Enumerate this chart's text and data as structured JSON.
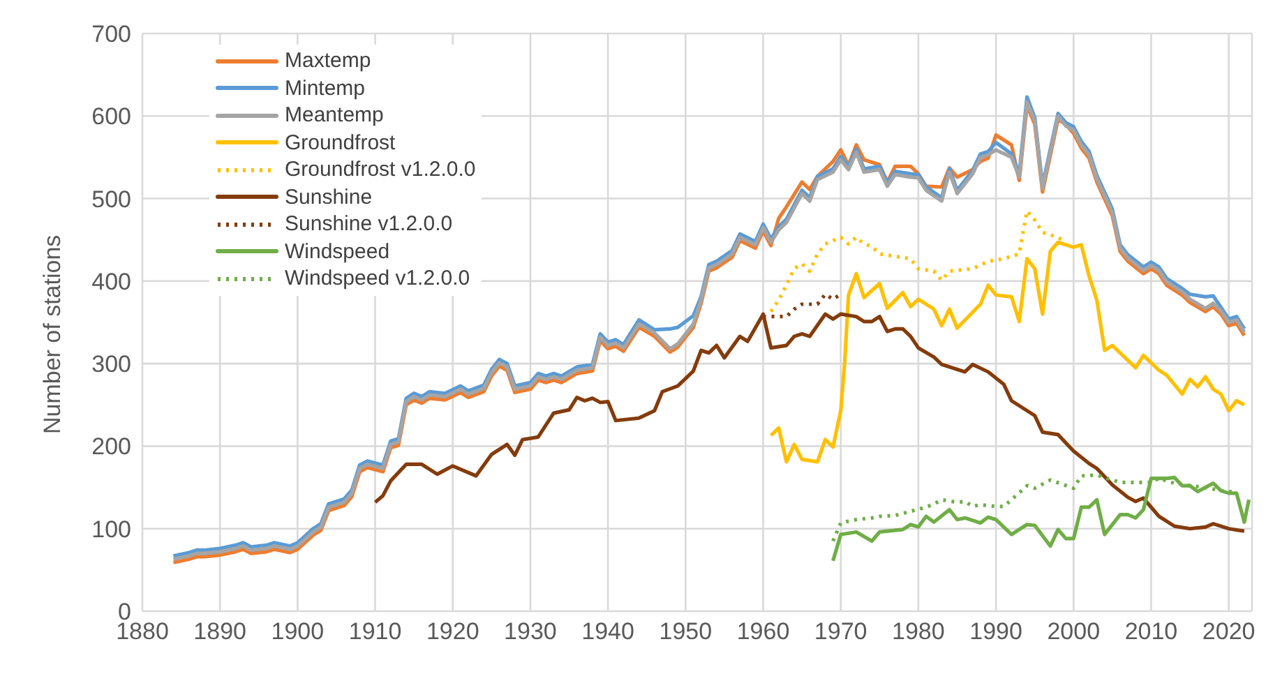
{
  "chart_data": {
    "type": "line",
    "ylabel": "Number of stations",
    "xlim": [
      1880,
      2023
    ],
    "xticks": [
      1880,
      1890,
      1900,
      1910,
      1920,
      1930,
      1940,
      1950,
      1960,
      1970,
      1980,
      1990,
      2000,
      2010,
      2020
    ],
    "ylim": [
      0,
      700
    ],
    "yticks": [
      0,
      100,
      200,
      300,
      400,
      500,
      600,
      700
    ],
    "grid": true,
    "legend": "top left",
    "marker": "none",
    "series": [
      {
        "name": "Maxtemp",
        "color": "#ed7d31",
        "line_style": "solid",
        "x": [
          1884,
          1886,
          1887,
          1888,
          1890,
          1892,
          1893,
          1894,
          1896,
          1897,
          1899,
          1900,
          1902,
          1903,
          1904,
          1906,
          1907,
          1908,
          1909,
          1911,
          1912,
          1913,
          1914,
          1915,
          1916,
          1917,
          1919,
          1921,
          1922,
          1924,
          1925,
          1926,
          1927,
          1928,
          1930,
          1931,
          1932,
          1933,
          1934,
          1936,
          1938,
          1939,
          1940,
          1941,
          1942,
          1944,
          1946,
          1948,
          1949,
          1951,
          1952,
          1953,
          1954,
          1956,
          1957,
          1959,
          1960,
          1961,
          1962,
          1963,
          1965,
          1966,
          1967,
          1969,
          1970,
          1971,
          1972,
          1973,
          1975,
          1976,
          1977,
          1979,
          1980,
          1981,
          1983,
          1984,
          1985,
          1987,
          1988,
          1989,
          1990,
          1992,
          1993,
          1994,
          1995,
          1996,
          1998,
          1999,
          2000,
          2001,
          2002,
          2003,
          2005,
          2006,
          2007,
          2009,
          2010,
          2011,
          2012,
          2014,
          2015,
          2017,
          2018,
          2019,
          2020,
          2021,
          2022
        ],
        "values": [
          59,
          63,
          66,
          66,
          68,
          72,
          75,
          70,
          72,
          75,
          71,
          75,
          92,
          98,
          122,
          128,
          139,
          169,
          174,
          169,
          198,
          201,
          250,
          256,
          252,
          258,
          256,
          265,
          259,
          266,
          285,
          297,
          292,
          265,
          269,
          280,
          277,
          280,
          277,
          288,
          291,
          328,
          318,
          321,
          315,
          344,
          333,
          314,
          320,
          344,
          373,
          412,
          416,
          429,
          449,
          440,
          461,
          443,
          476,
          490,
          520,
          511,
          527,
          545,
          559,
          540,
          565,
          547,
          541,
          520,
          539,
          539,
          530,
          515,
          514,
          537,
          526,
          535,
          545,
          549,
          577,
          565,
          522,
          613,
          590,
          508,
          596,
          590,
          579,
          561,
          549,
          520,
          479,
          436,
          424,
          409,
          415,
          409,
          395,
          383,
          374,
          363,
          369,
          360,
          346,
          349,
          334
        ]
      },
      {
        "name": "Mintemp",
        "color": "#5b9bd5",
        "line_style": "solid",
        "x": [
          1884,
          1886,
          1887,
          1888,
          1890,
          1892,
          1893,
          1894,
          1896,
          1897,
          1899,
          1900,
          1902,
          1903,
          1904,
          1906,
          1907,
          1908,
          1909,
          1911,
          1912,
          1913,
          1914,
          1915,
          1916,
          1917,
          1919,
          1921,
          1922,
          1924,
          1925,
          1926,
          1927,
          1928,
          1930,
          1931,
          1932,
          1933,
          1934,
          1936,
          1938,
          1939,
          1940,
          1941,
          1942,
          1944,
          1946,
          1948,
          1949,
          1951,
          1952,
          1953,
          1954,
          1956,
          1957,
          1959,
          1960,
          1961,
          1962,
          1963,
          1965,
          1966,
          1967,
          1969,
          1970,
          1971,
          1972,
          1973,
          1975,
          1976,
          1977,
          1979,
          1980,
          1981,
          1983,
          1984,
          1985,
          1987,
          1988,
          1989,
          1990,
          1992,
          1993,
          1994,
          1995,
          1996,
          1998,
          1999,
          2000,
          2001,
          2002,
          2003,
          2005,
          2006,
          2007,
          2009,
          2010,
          2011,
          2012,
          2014,
          2015,
          2017,
          2018,
          2019,
          2020,
          2021,
          2022
        ],
        "values": [
          67,
          71,
          74,
          74,
          76,
          80,
          83,
          78,
          80,
          83,
          79,
          83,
          100,
          106,
          130,
          136,
          147,
          177,
          182,
          177,
          206,
          209,
          258,
          264,
          260,
          266,
          264,
          273,
          267,
          274,
          293,
          305,
          300,
          273,
          277,
          288,
          285,
          288,
          285,
          296,
          299,
          336,
          326,
          329,
          323,
          353,
          341,
          342,
          344,
          358,
          381,
          420,
          424,
          437,
          457,
          448,
          469,
          451,
          466,
          475,
          510,
          501,
          527,
          536,
          551,
          539,
          560,
          536,
          539,
          519,
          533,
          530,
          529,
          514,
          501,
          536,
          510,
          534,
          554,
          557,
          568,
          554,
          530,
          623,
          598,
          516,
          603,
          592,
          587,
          569,
          557,
          528,
          487,
          444,
          432,
          417,
          423,
          417,
          403,
          391,
          384,
          381,
          382,
          368,
          354,
          357,
          342
        ]
      },
      {
        "name": "Meantemp",
        "color": "#a5a5a5",
        "line_style": "solid",
        "x": [
          1884,
          1886,
          1887,
          1888,
          1890,
          1892,
          1893,
          1894,
          1896,
          1897,
          1899,
          1900,
          1902,
          1903,
          1904,
          1906,
          1907,
          1908,
          1909,
          1911,
          1912,
          1913,
          1914,
          1915,
          1916,
          1917,
          1919,
          1921,
          1922,
          1924,
          1925,
          1926,
          1927,
          1928,
          1930,
          1931,
          1932,
          1933,
          1934,
          1936,
          1938,
          1939,
          1940,
          1941,
          1942,
          1944,
          1946,
          1948,
          1949,
          1951,
          1952,
          1953,
          1954,
          1956,
          1957,
          1959,
          1960,
          1961,
          1962,
          1963,
          1965,
          1966,
          1967,
          1969,
          1970,
          1971,
          1972,
          1973,
          1975,
          1976,
          1977,
          1979,
          1980,
          1981,
          1983,
          1984,
          1985,
          1987,
          1988,
          1989,
          1990,
          1992,
          1993,
          1994,
          1995,
          1996,
          1998,
          1999,
          2000,
          2001,
          2002,
          2003,
          2005,
          2006,
          2007,
          2009,
          2010,
          2011,
          2012,
          2014,
          2015,
          2017,
          2018,
          2019,
          2020,
          2021,
          2022
        ],
        "values": [
          63,
          67,
          70,
          70,
          72,
          76,
          79,
          74,
          76,
          79,
          75,
          79,
          96,
          102,
          126,
          132,
          143,
          173,
          178,
          173,
          202,
          205,
          254,
          260,
          256,
          262,
          260,
          269,
          263,
          270,
          289,
          301,
          296,
          269,
          273,
          284,
          281,
          284,
          281,
          292,
          295,
          332,
          322,
          325,
          319,
          348,
          337,
          318,
          324,
          348,
          377,
          416,
          420,
          433,
          453,
          444,
          465,
          447,
          462,
          471,
          506,
          497,
          523,
          532,
          547,
          535,
          556,
          532,
          535,
          515,
          529,
          526,
          525,
          510,
          497,
          532,
          506,
          530,
          550,
          553,
          559,
          550,
          526,
          617,
          594,
          512,
          600,
          588,
          583,
          565,
          553,
          524,
          483,
          440,
          428,
          413,
          419,
          413,
          399,
          387,
          378,
          367,
          373,
          364,
          350,
          353,
          338
        ]
      },
      {
        "name": "Groundfrost",
        "color": "#ffc000",
        "line_style": "solid",
        "x": [
          1961,
          1962,
          1963,
          1964,
          1965,
          1967,
          1968,
          1969,
          1970,
          1970.5,
          1971,
          1972,
          1973,
          1975,
          1976,
          1978,
          1979,
          1980,
          1982,
          1983,
          1984,
          1985,
          1988,
          1989,
          1990,
          1992,
          1993,
          1994,
          1995,
          1996,
          1997,
          1998,
          1999,
          2000,
          2001,
          2002,
          2003,
          2004,
          2005,
          2006,
          2008,
          2009,
          2011,
          2012,
          2014,
          2015,
          2016,
          2017,
          2018,
          2019,
          2020,
          2021,
          2022
        ],
        "values": [
          213,
          222,
          181,
          202,
          184,
          181,
          208,
          199,
          243,
          301,
          383,
          409,
          380,
          397,
          367,
          386,
          369,
          378,
          366,
          346,
          366,
          343,
          372,
          395,
          383,
          381,
          351,
          427,
          415,
          360,
          436,
          447,
          444,
          441,
          444,
          406,
          377,
          316,
          322,
          313,
          295,
          310,
          292,
          286,
          263,
          281,
          272,
          284,
          269,
          263,
          243,
          255,
          250
        ]
      },
      {
        "name": "Groundfrost v1.2.0.0",
        "color": "#ffc000",
        "line_style": "dotted",
        "x": [
          1961,
          1962,
          1963,
          1964,
          1965,
          1966,
          1967,
          1968,
          1970,
          1971,
          1972,
          1973,
          1974,
          1975,
          1977,
          1979,
          1980,
          1982,
          1983,
          1984,
          1987,
          1989,
          1991,
          1993,
          1994,
          1995,
          1996,
          1998,
          1999
        ],
        "values": [
          363,
          377,
          395,
          415,
          421,
          412,
          433,
          445,
          453,
          445,
          453,
          445,
          442,
          433,
          430,
          427,
          415,
          412,
          401,
          412,
          415,
          424,
          427,
          433,
          485,
          474,
          459,
          453,
          447
        ]
      },
      {
        "name": "Sunshine",
        "color": "#843c0c",
        "line_style": "solid",
        "x": [
          1910,
          1911,
          1912,
          1914,
          1916,
          1918,
          1920,
          1921,
          1923,
          1925,
          1927,
          1928,
          1929,
          1931,
          1933,
          1935,
          1936,
          1937,
          1938,
          1939,
          1940,
          1941,
          1944,
          1946,
          1947,
          1949,
          1951,
          1952,
          1953,
          1954,
          1955,
          1957,
          1958,
          1960,
          1961,
          1963,
          1964,
          1965,
          1966,
          1968,
          1969,
          1970,
          1972,
          1973,
          1974,
          1975,
          1976,
          1977,
          1978,
          1979,
          1980,
          1982,
          1983,
          1986,
          1987,
          1989,
          1991,
          1992,
          1995,
          1996,
          1998,
          2000,
          2002,
          2003,
          2005,
          2007,
          2008,
          2009,
          2011,
          2013,
          2015,
          2017,
          2018,
          2020,
          2022
        ],
        "values": [
          132,
          140,
          158,
          178,
          178,
          166,
          176,
          172,
          164,
          190,
          202,
          189,
          208,
          211,
          240,
          244,
          259,
          255,
          258,
          253,
          254,
          231,
          234,
          243,
          266,
          273,
          291,
          316,
          313,
          322,
          307,
          333,
          327,
          360,
          319,
          322,
          333,
          336,
          333,
          360,
          354,
          360,
          357,
          351,
          351,
          357,
          339,
          342,
          342,
          333,
          319,
          308,
          299,
          290,
          299,
          290,
          275,
          255,
          237,
          217,
          214,
          194,
          179,
          173,
          153,
          138,
          133,
          137,
          115,
          103,
          100,
          102,
          106,
          100,
          97
        ]
      },
      {
        "name": "Sunshine v1.2.0.0",
        "color": "#843c0c",
        "line_style": "dotted",
        "x": [
          1960,
          1962,
          1963,
          1964,
          1965,
          1967,
          1968,
          1969,
          1970
        ],
        "values": [
          357,
          357,
          357,
          366,
          372,
          372,
          384,
          378,
          384
        ]
      },
      {
        "name": "Windspeed",
        "color": "#70ad47",
        "line_style": "solid",
        "x": [
          1969,
          1970,
          1972,
          1974,
          1975,
          1978,
          1979,
          1980,
          1981,
          1982,
          1984,
          1985,
          1986,
          1988,
          1989,
          1990,
          1992,
          1994,
          1995,
          1997,
          1998,
          1999,
          2000,
          2001,
          2002,
          2003,
          2004,
          2006,
          2007,
          2008,
          2009,
          2010,
          2012,
          2013,
          2014,
          2015,
          2016,
          2018,
          2019,
          2020,
          2021,
          2022,
          2022.6
        ],
        "values": [
          61,
          93,
          96,
          85,
          96,
          99,
          105,
          102,
          115,
          108,
          123,
          111,
          113,
          107,
          114,
          111,
          93,
          105,
          104,
          79,
          99,
          88,
          88,
          126,
          126,
          135,
          93,
          117,
          117,
          113,
          123,
          161,
          161,
          162,
          152,
          152,
          145,
          155,
          146,
          143,
          143,
          108,
          135
        ]
      },
      {
        "name": "Windspeed v1.2.0.0",
        "color": "#70ad47",
        "line_style": "dotted",
        "x": [
          1969,
          1970,
          1972,
          1974,
          1975,
          1977,
          1979,
          1981,
          1982,
          1983,
          1985,
          1986,
          1987,
          1988,
          1990,
          1991,
          1992,
          1994,
          1995,
          1997,
          2000,
          2001,
          2003,
          2004,
          2006,
          2008,
          2010,
          2011,
          2013,
          2015,
          2017,
          2019,
          2021
        ],
        "values": [
          85,
          107,
          111,
          113,
          115,
          116,
          121,
          126,
          130,
          135,
          132,
          133,
          127,
          129,
          127,
          127,
          135,
          152,
          149,
          159,
          149,
          164,
          165,
          162,
          156,
          156,
          156,
          161,
          155,
          152,
          150,
          146,
          144
        ]
      }
    ]
  }
}
